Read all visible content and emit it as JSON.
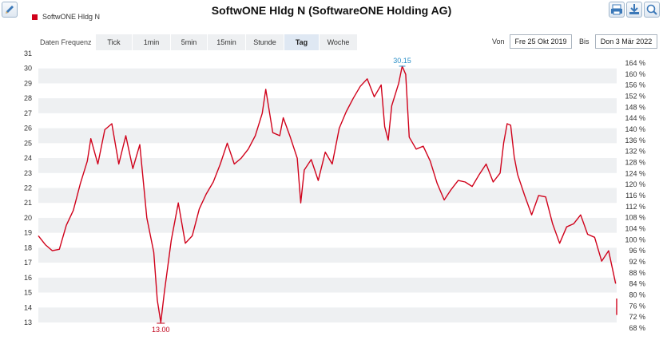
{
  "header": {
    "title": "SoftwONE Hldg N (SoftwareONE Holding AG)",
    "edit_icon": "pencil-icon",
    "tools": [
      "print-icon",
      "download-icon",
      "zoom-icon"
    ]
  },
  "controls": {
    "freq_label": "Daten Frequenz",
    "tabs": [
      {
        "label": "Tick",
        "active": false
      },
      {
        "label": "1min",
        "active": false
      },
      {
        "label": "5min",
        "active": false
      },
      {
        "label": "15min",
        "active": false
      },
      {
        "label": "Stunde",
        "active": false
      },
      {
        "label": "Tag",
        "active": true
      },
      {
        "label": "Woche",
        "active": false
      }
    ],
    "from_label": "Von",
    "from_value": "Fre 25 Okt 2019",
    "to_label": "Bis",
    "to_value": "Don 3 Mär 2022"
  },
  "colors": {
    "series": "#d0021b",
    "band": "#eef0f2",
    "max_annotation": "#2a8fc7",
    "min_annotation": "#c00018"
  },
  "chart_data": {
    "type": "line",
    "title": "SoftwONE Hldg N (SoftwareONE Holding AG)",
    "series": [
      {
        "name": "SoftwONE Hldg N",
        "points": [
          [
            0,
            18.8
          ],
          [
            2,
            18.2
          ],
          [
            4,
            17.8
          ],
          [
            6,
            17.9
          ],
          [
            8,
            19.5
          ],
          [
            10,
            20.5
          ],
          [
            12,
            22.3
          ],
          [
            14,
            23.8
          ],
          [
            15,
            25.3
          ],
          [
            17,
            23.6
          ],
          [
            19,
            25.9
          ],
          [
            21,
            26.3
          ],
          [
            23,
            23.6
          ],
          [
            25,
            25.5
          ],
          [
            27,
            23.3
          ],
          [
            29,
            24.9
          ],
          [
            31,
            20.0
          ],
          [
            33,
            17.7
          ],
          [
            34,
            14.5
          ],
          [
            35,
            13.0
          ],
          [
            36,
            15.0
          ],
          [
            38,
            18.5
          ],
          [
            40,
            21.0
          ],
          [
            42,
            18.3
          ],
          [
            44,
            18.8
          ],
          [
            46,
            20.6
          ],
          [
            48,
            21.6
          ],
          [
            50,
            22.4
          ],
          [
            52,
            23.6
          ],
          [
            54,
            25.0
          ],
          [
            56,
            23.6
          ],
          [
            58,
            24.0
          ],
          [
            60,
            24.6
          ],
          [
            62,
            25.5
          ],
          [
            64,
            27.0
          ],
          [
            65,
            28.6
          ],
          [
            67,
            25.7
          ],
          [
            69,
            25.5
          ],
          [
            70,
            26.7
          ],
          [
            72,
            25.4
          ],
          [
            74,
            24.0
          ],
          [
            75,
            21.0
          ],
          [
            76,
            23.2
          ],
          [
            78,
            23.9
          ],
          [
            80,
            22.5
          ],
          [
            82,
            24.4
          ],
          [
            84,
            23.6
          ],
          [
            86,
            26.0
          ],
          [
            88,
            27.1
          ],
          [
            90,
            28.0
          ],
          [
            92,
            28.8
          ],
          [
            94,
            29.3
          ],
          [
            96,
            28.1
          ],
          [
            98,
            28.9
          ],
          [
            99,
            26.1
          ],
          [
            100,
            25.2
          ],
          [
            101,
            27.5
          ],
          [
            103,
            29.0
          ],
          [
            104,
            30.15
          ],
          [
            105,
            29.6
          ],
          [
            106,
            25.4
          ],
          [
            108,
            24.6
          ],
          [
            110,
            24.8
          ],
          [
            112,
            23.8
          ],
          [
            114,
            22.3
          ],
          [
            116,
            21.2
          ],
          [
            118,
            21.9
          ],
          [
            120,
            22.5
          ],
          [
            122,
            22.4
          ],
          [
            124,
            22.1
          ],
          [
            126,
            22.9
          ],
          [
            128,
            23.6
          ],
          [
            130,
            22.4
          ],
          [
            132,
            23.0
          ],
          [
            133,
            25.0
          ],
          [
            134,
            26.3
          ],
          [
            135,
            26.2
          ],
          [
            136,
            24.1
          ],
          [
            137,
            22.9
          ],
          [
            139,
            21.5
          ],
          [
            141,
            20.2
          ],
          [
            143,
            21.5
          ],
          [
            145,
            21.4
          ],
          [
            147,
            19.6
          ],
          [
            149,
            18.3
          ],
          [
            151,
            19.4
          ],
          [
            153,
            19.6
          ],
          [
            155,
            20.2
          ],
          [
            157,
            18.9
          ],
          [
            159,
            18.7
          ],
          [
            161,
            17.1
          ],
          [
            163,
            17.8
          ],
          [
            164,
            16.7
          ],
          [
            165,
            15.6
          ]
        ]
      },
      {
        "name": "SoftwONE Hldg N",
        "points": [
          [
            165.3,
            14.6
          ],
          [
            165.3,
            13.5
          ]
        ]
      }
    ],
    "x_range": [
      0,
      165.3
    ],
    "y_left": {
      "min": 13,
      "max": 31,
      "ticks": [
        13,
        14,
        15,
        16,
        17,
        18,
        19,
        20,
        21,
        22,
        23,
        24,
        25,
        26,
        27,
        28,
        29,
        30,
        31
      ]
    },
    "y_right": {
      "ticks": [
        "68 %",
        "72 %",
        "76 %",
        "80 %",
        "84 %",
        "88 %",
        "92 %",
        "96 %",
        "100 %",
        "104 %",
        "108 %",
        "112 %",
        "116 %",
        "120 %",
        "124 %",
        "128 %",
        "132 %",
        "136 %",
        "140 %",
        "144 %",
        "148 %",
        "152 %",
        "156 %",
        "160 %",
        "164 %"
      ]
    },
    "annotations": [
      {
        "label": "30.15",
        "x": 104,
        "y": 30.15,
        "kind": "max"
      },
      {
        "label": "13.00",
        "x": 35,
        "y": 13.0,
        "kind": "min"
      }
    ],
    "legend": {
      "entries": [
        "SoftwONE Hldg N"
      ],
      "placement": "top-left"
    },
    "grid": true
  }
}
